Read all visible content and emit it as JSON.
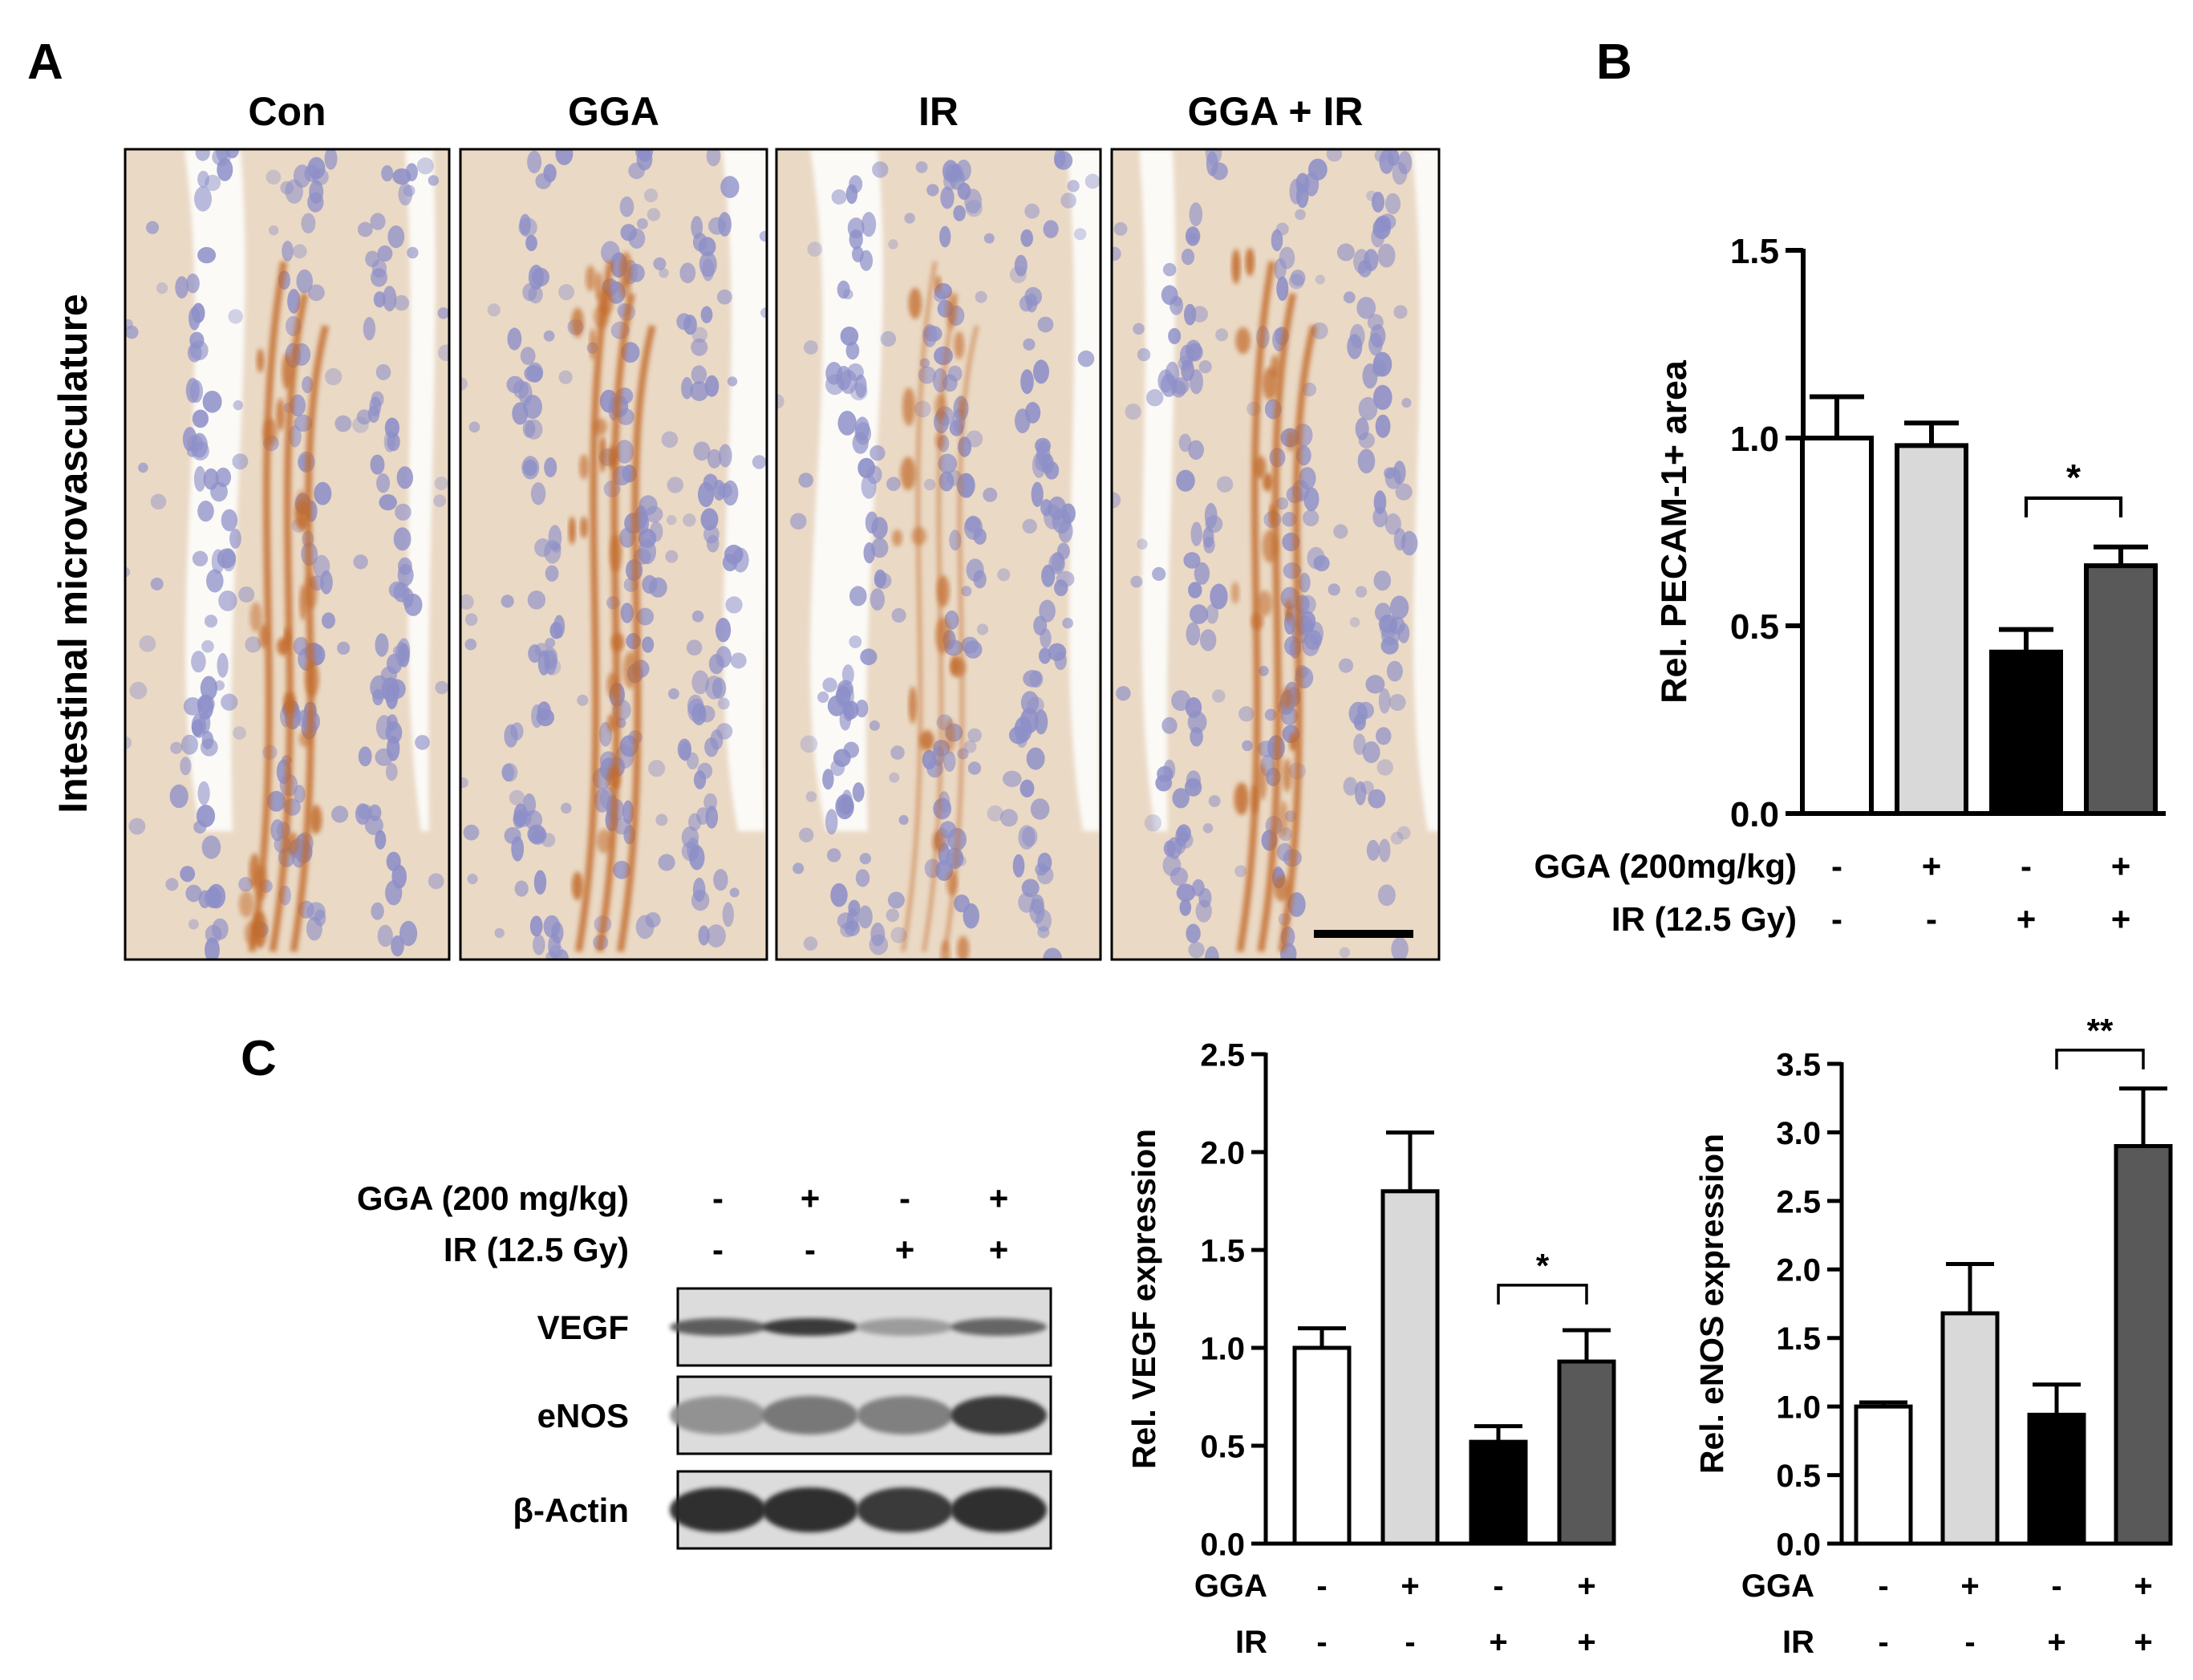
{
  "panel_labels": {
    "a": "A",
    "b": "B",
    "c": "C"
  },
  "panel_a": {
    "ylabel": "Intestinal microvasculature",
    "columns": [
      "Con",
      "GGA",
      "IR",
      "GGA + IR"
    ],
    "colors": {
      "tissue": "#ead9c5",
      "nuclei": "#8d8fc8",
      "vessel": "#c26a2c",
      "lumen": "#fbfaf7"
    }
  },
  "chart_data": [
    {
      "id": "pecam",
      "type": "bar",
      "ylabel": "Rel. PECAM-1+ area",
      "ylim": [
        0,
        1.5
      ],
      "yticks": [
        0.0,
        0.5,
        1.0,
        1.5
      ],
      "ytick_labels": [
        "0.0",
        "0.5",
        "1.0",
        "1.5"
      ],
      "values": [
        1.0,
        0.98,
        0.43,
        0.66
      ],
      "errors": [
        0.11,
        0.06,
        0.06,
        0.05
      ],
      "fills": [
        "#ffffff",
        "#d9d9d9",
        "#000000",
        "#595959"
      ],
      "significance": {
        "from": 2,
        "to": 3,
        "label": "*",
        "y": 0.84
      },
      "rows": [
        {
          "label": "GGA (200mg/kg)",
          "signs": [
            "-",
            "+",
            "-",
            "+"
          ]
        },
        {
          "label": "IR (12.5 Gy)",
          "signs": [
            "-",
            "-",
            "+",
            "+"
          ]
        }
      ]
    },
    {
      "id": "vegf",
      "type": "bar",
      "ylabel": "Rel. VEGF expression",
      "ylim": [
        0,
        2.5
      ],
      "yticks": [
        0.0,
        0.5,
        1.0,
        1.5,
        2.0,
        2.5
      ],
      "ytick_labels": [
        "0.0",
        "0.5",
        "1.0",
        "1.5",
        "2.0",
        "2.5"
      ],
      "values": [
        1.0,
        1.8,
        0.52,
        0.93
      ],
      "errors": [
        0.1,
        0.3,
        0.08,
        0.16
      ],
      "fills": [
        "#ffffff",
        "#d9d9d9",
        "#000000",
        "#595959"
      ],
      "significance": {
        "from": 2,
        "to": 3,
        "label": "*",
        "y": 1.32
      },
      "rows": [
        {
          "label": "GGA",
          "signs": [
            "-",
            "+",
            "-",
            "+"
          ]
        },
        {
          "label": "IR",
          "signs": [
            "-",
            "-",
            "+",
            "+"
          ]
        }
      ]
    },
    {
      "id": "enos",
      "type": "bar",
      "ylabel": "Rel. eNOS expression",
      "ylim": [
        0,
        3.5
      ],
      "yticks": [
        0.0,
        0.5,
        1.0,
        1.5,
        2.0,
        2.5,
        3.0,
        3.5
      ],
      "ytick_labels": [
        "0.0",
        "0.5",
        "1.0",
        "1.5",
        "2.0",
        "2.5",
        "3.0",
        "3.5"
      ],
      "values": [
        1.0,
        1.68,
        0.94,
        2.9
      ],
      "errors": [
        0.03,
        0.36,
        0.22,
        0.42
      ],
      "fills": [
        "#ffffff",
        "#d9d9d9",
        "#000000",
        "#595959"
      ],
      "significance": {
        "from": 2,
        "to": 3,
        "label": "**",
        "y": 3.6
      },
      "rows": [
        {
          "label": "GGA",
          "signs": [
            "-",
            "+",
            "-",
            "+"
          ]
        },
        {
          "label": "IR",
          "signs": [
            "-",
            "-",
            "+",
            "+"
          ]
        }
      ]
    }
  ],
  "blot": {
    "conditions": [
      {
        "label": "GGA (200 mg/kg)",
        "signs": [
          "-",
          "+",
          "-",
          "+"
        ]
      },
      {
        "label": "IR (12.5 Gy)",
        "signs": [
          "-",
          "-",
          "+",
          "+"
        ]
      }
    ],
    "rows": [
      {
        "label": "VEGF",
        "intensity": [
          0.6,
          0.8,
          0.25,
          0.55
        ]
      },
      {
        "label": "eNOS",
        "intensity": [
          0.3,
          0.45,
          0.4,
          0.8
        ]
      },
      {
        "label": "β-Actin",
        "intensity": [
          0.85,
          0.85,
          0.8,
          0.85
        ]
      }
    ]
  }
}
